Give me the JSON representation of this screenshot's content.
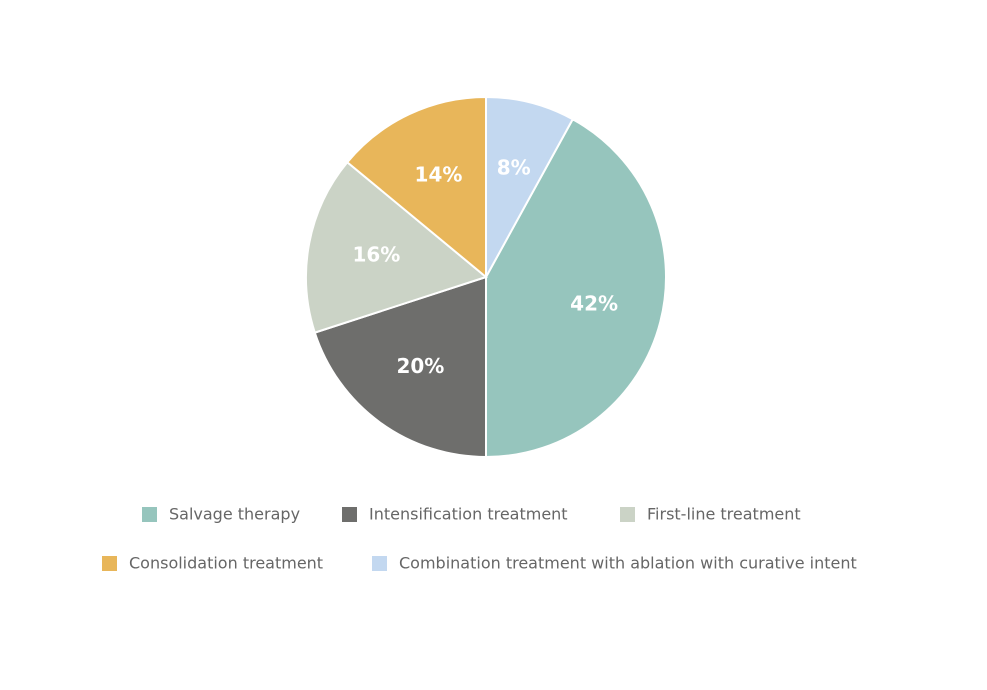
{
  "chart_data": {
    "type": "pie",
    "categories": [
      "Salvage therapy",
      "Intensification treatment",
      "First-line treatment",
      "Consolidation treatment",
      "Combination treatment with ablation with curative intent"
    ],
    "values": [
      42,
      20,
      16,
      14,
      8
    ],
    "value_labels": [
      "42%",
      "20%",
      "16%",
      "14%",
      "8%"
    ],
    "colors": [
      "#96c5bd",
      "#6e6e6c",
      "#cbd3c6",
      "#e8b65a",
      "#c3d8f0"
    ]
  }
}
